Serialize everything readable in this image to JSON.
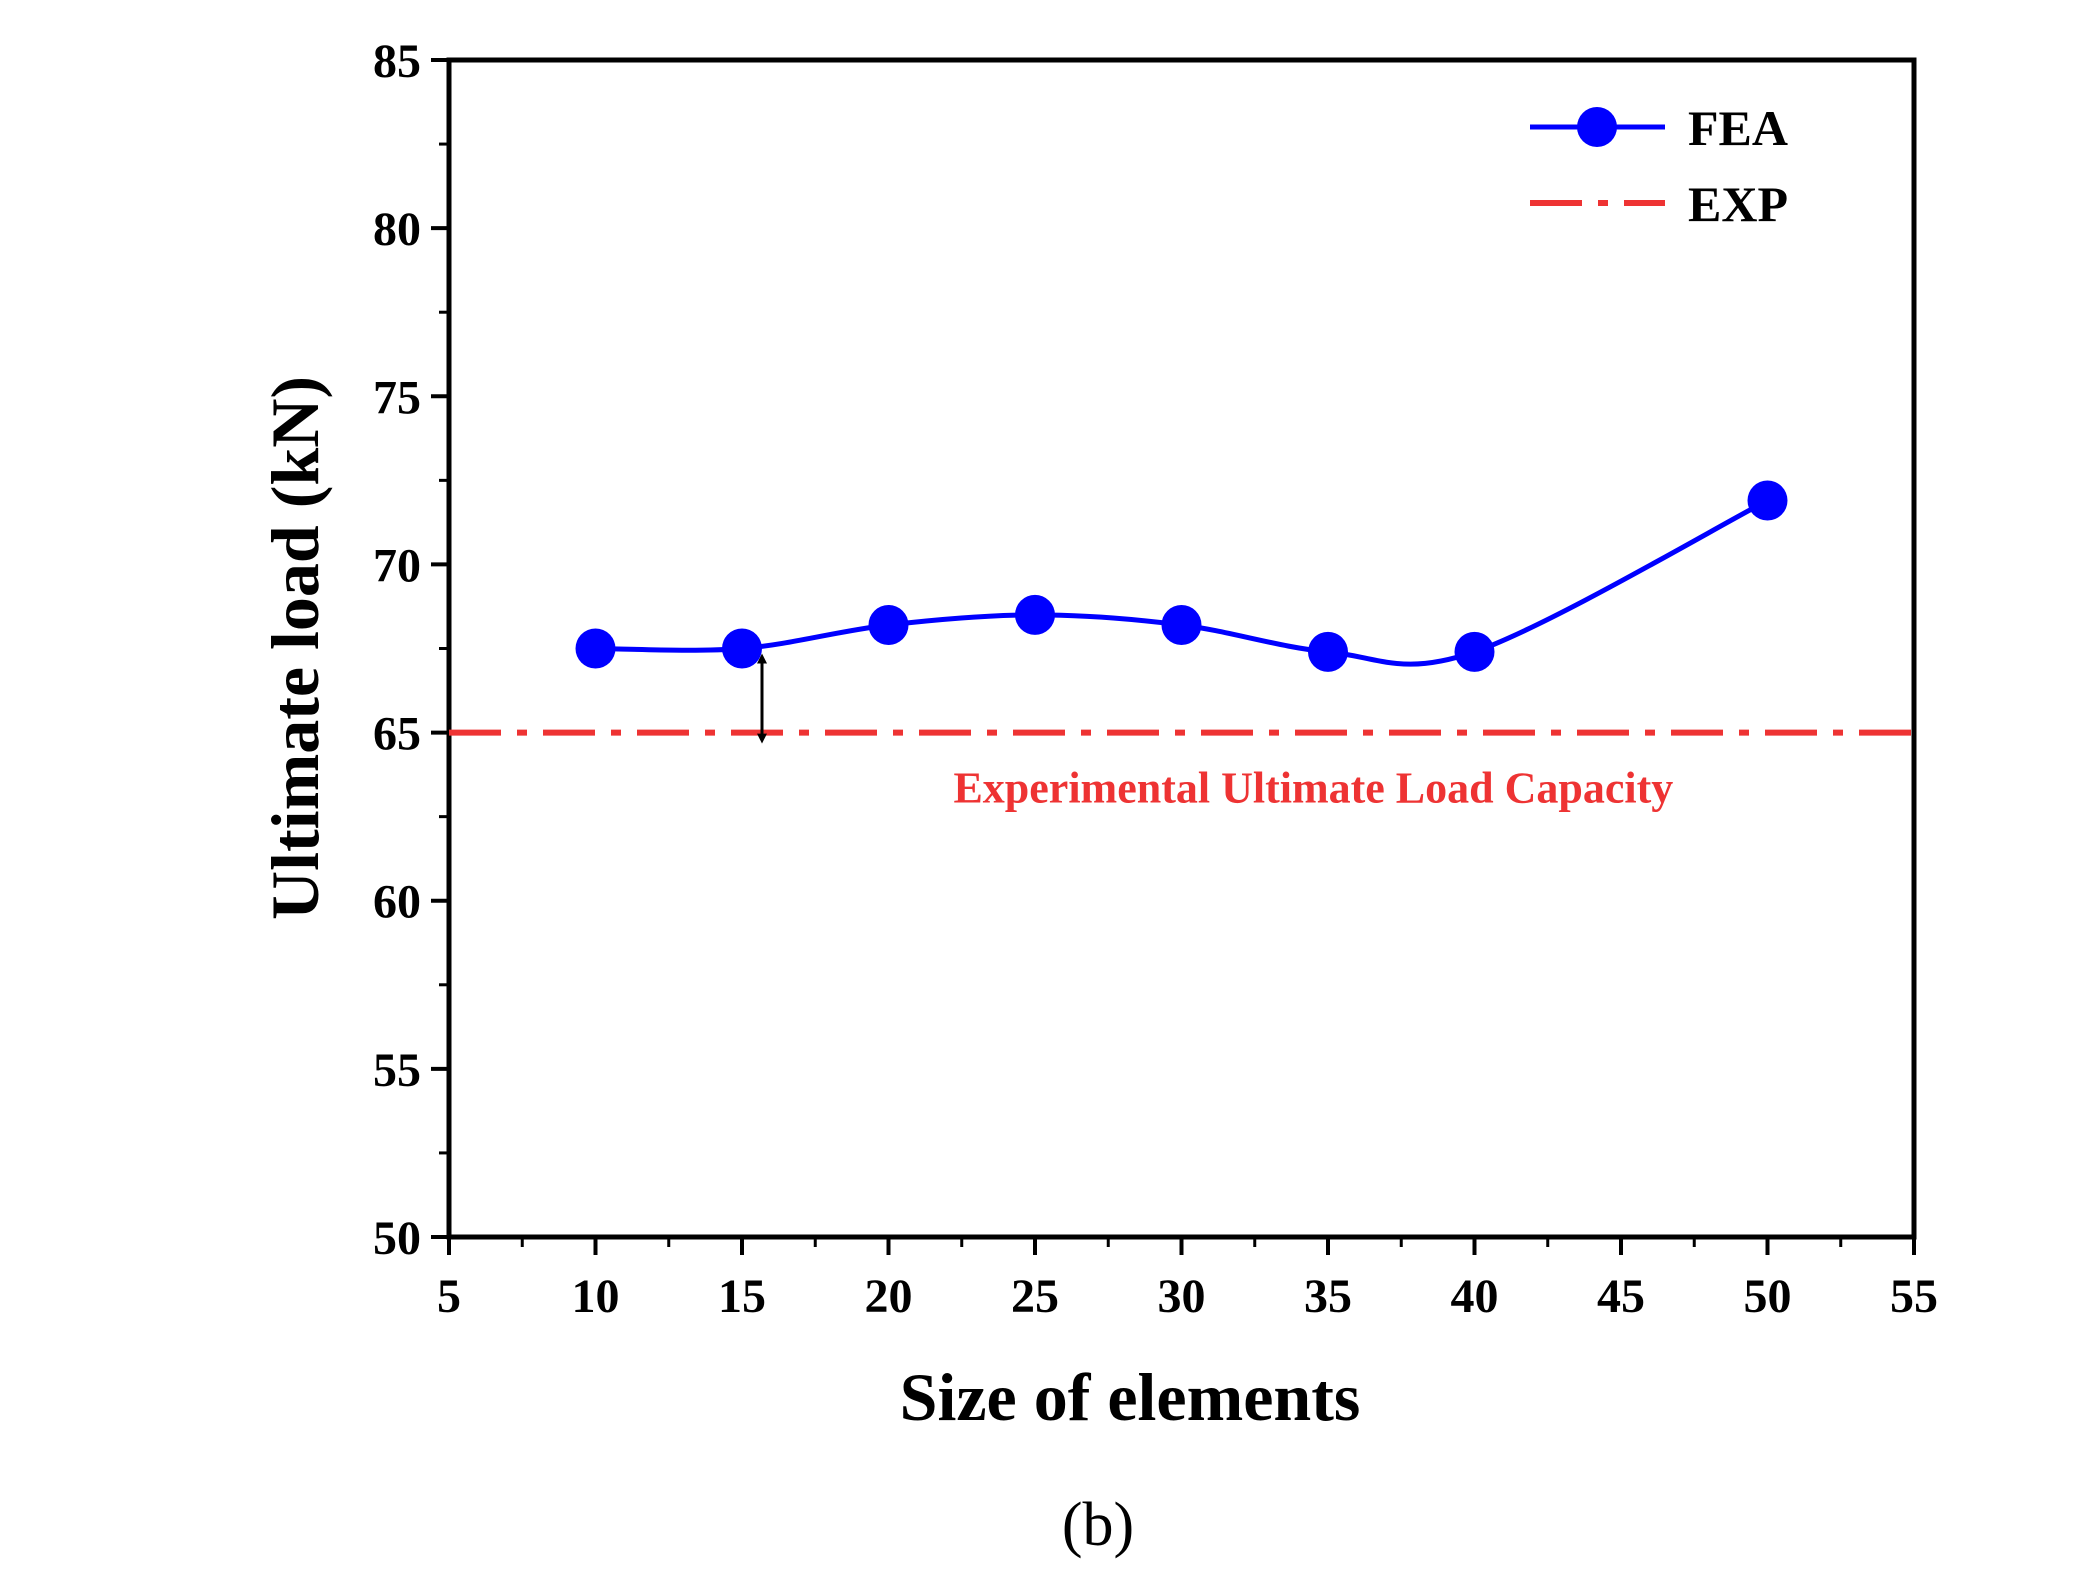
{
  "chart_data": {
    "type": "line",
    "xlabel": "Size of elements",
    "ylabel": "Ultimate load (kN)",
    "xlim": [
      5,
      55
    ],
    "ylim": [
      50,
      85
    ],
    "xticks": [
      5,
      10,
      15,
      20,
      25,
      30,
      35,
      40,
      45,
      50,
      55
    ],
    "yticks": [
      50,
      55,
      60,
      65,
      70,
      75,
      80,
      85
    ],
    "grid": false,
    "legend_position": "top-right",
    "series": [
      {
        "name": "FEA",
        "style": "solid-line-circle-markers",
        "color": "#0000ff",
        "x": [
          10,
          15,
          20,
          25,
          30,
          35,
          40,
          50
        ],
        "y": [
          67.5,
          67.5,
          68.2,
          68.5,
          68.2,
          67.4,
          67.4,
          71.9
        ]
      },
      {
        "name": "EXP",
        "style": "dash-dot-line",
        "color": "#ee3333",
        "y_constant": 65
      }
    ],
    "annotations": [
      {
        "text": "Experimental Ultimate Load Capacity",
        "color": "#ee3333"
      }
    ],
    "caption": "(b)"
  }
}
